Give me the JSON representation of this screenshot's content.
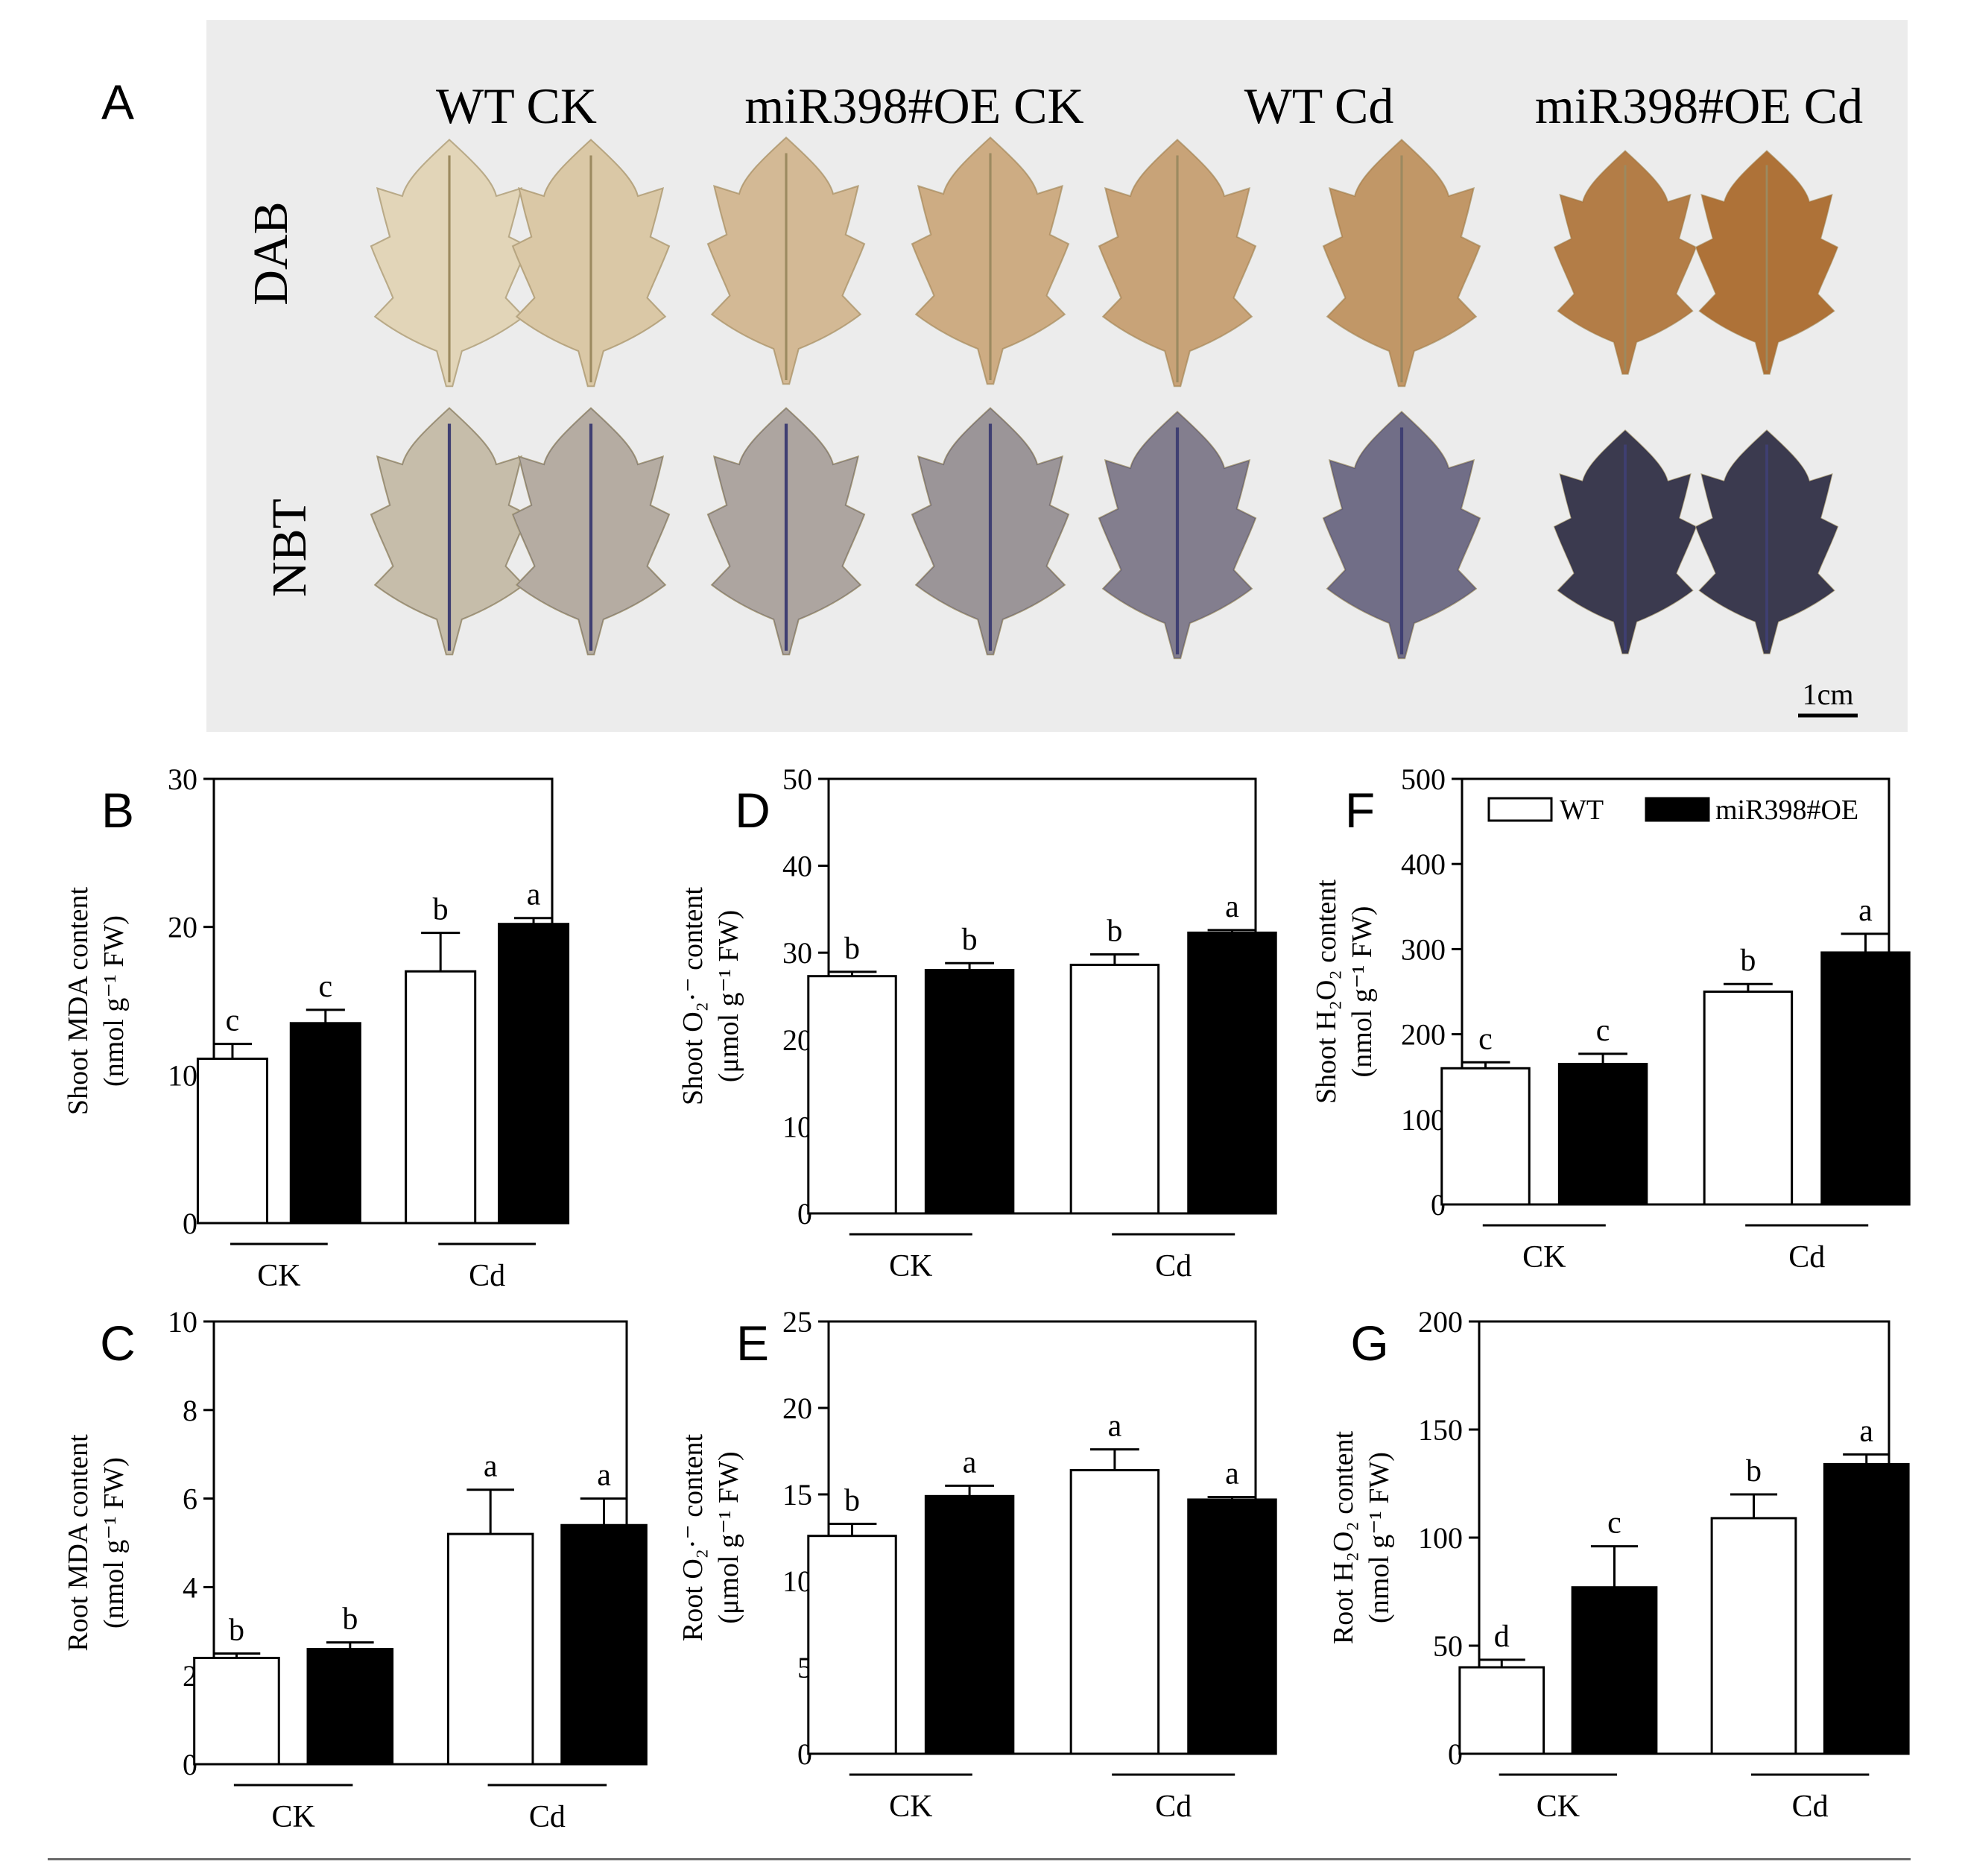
{
  "panel_a": {
    "label": "A",
    "columns": [
      "WT CK",
      "miR398#OE CK",
      "WT Cd",
      "miR398#OE Cd"
    ],
    "rows": [
      "DAB",
      "NBT"
    ],
    "scale_bar": "1cm",
    "photo_background": "#ececec",
    "stain_colors": {
      "dab_leaf": "#e2d5b8",
      "dab_brown": "#a8672a",
      "nbt_leaf": "#e8dcb8",
      "nbt_blue": "#3f3f72",
      "nbt_dark": "#2b2b45"
    }
  },
  "legend": {
    "wt_label": "WT",
    "oe_label": "miR398#OE"
  },
  "colors": {
    "wt_fill": "#ffffff",
    "oe_fill": "#000000",
    "axis": "#000000"
  },
  "chart_data": [
    {
      "id": "B",
      "type": "bar",
      "panel_label": "B",
      "ylabel_lines": [
        "Shoot MDA content",
        "(nmol g⁻¹ FW)"
      ],
      "ylim": [
        0,
        30
      ],
      "yticks": [
        0,
        10,
        20,
        30
      ],
      "groups": [
        "CK",
        "Cd"
      ],
      "series": [
        {
          "name": "WT",
          "values": [
            11.1,
            17.0
          ],
          "errors": [
            1.0,
            2.6
          ],
          "letters": [
            "c",
            "b"
          ]
        },
        {
          "name": "miR398#OE",
          "values": [
            13.5,
            20.2
          ],
          "errors": [
            0.9,
            0.4
          ],
          "letters": [
            "c",
            "a"
          ]
        }
      ]
    },
    {
      "id": "C",
      "type": "bar",
      "panel_label": "C",
      "ylabel_lines": [
        "Root MDA content",
        "(nmol g⁻¹ FW)"
      ],
      "ylim": [
        0,
        10
      ],
      "yticks": [
        0,
        2,
        4,
        6,
        8,
        10
      ],
      "groups": [
        "CK",
        "Cd"
      ],
      "series": [
        {
          "name": "WT",
          "values": [
            2.4,
            5.2
          ],
          "errors": [
            0.1,
            1.0
          ],
          "letters": [
            "b",
            "a"
          ]
        },
        {
          "name": "miR398#OE",
          "values": [
            2.6,
            5.4
          ],
          "errors": [
            0.15,
            0.6
          ],
          "letters": [
            "b",
            "a"
          ]
        }
      ]
    },
    {
      "id": "D",
      "type": "bar",
      "panel_label": "D",
      "ylabel_lines": [
        "Shoot O₂·⁻ content",
        "(μmol g⁻¹ FW)"
      ],
      "ylim": [
        0,
        50
      ],
      "yticks": [
        0,
        10,
        20,
        30,
        40,
        50
      ],
      "groups": [
        "CK",
        "Cd"
      ],
      "series": [
        {
          "name": "WT",
          "values": [
            27.3,
            28.6
          ],
          "errors": [
            0.5,
            1.2
          ],
          "letters": [
            "b",
            "b"
          ]
        },
        {
          "name": "miR398#OE",
          "values": [
            28.0,
            32.3
          ],
          "errors": [
            0.8,
            0.3
          ],
          "letters": [
            "b",
            "a"
          ]
        }
      ]
    },
    {
      "id": "E",
      "type": "bar",
      "panel_label": "E",
      "ylabel_lines": [
        "Root O₂·⁻ content",
        "(μmol g⁻¹ FW)"
      ],
      "ylim": [
        0,
        25
      ],
      "yticks": [
        0,
        5,
        10,
        15,
        20,
        25
      ],
      "groups": [
        "CK",
        "Cd"
      ],
      "series": [
        {
          "name": "WT",
          "values": [
            12.6,
            16.4
          ],
          "errors": [
            0.7,
            1.2
          ],
          "letters": [
            "b",
            "a"
          ]
        },
        {
          "name": "miR398#OE",
          "values": [
            14.9,
            14.7
          ],
          "errors": [
            0.6,
            0.15
          ],
          "letters": [
            "a",
            "a"
          ]
        }
      ]
    },
    {
      "id": "F",
      "type": "bar",
      "panel_label": "F",
      "ylabel_lines": [
        "Shoot H₂O₂ content",
        "(nmol g⁻¹ FW)"
      ],
      "ylim": [
        0,
        500
      ],
      "yticks": [
        0,
        100,
        200,
        300,
        400,
        500
      ],
      "groups": [
        "CK",
        "Cd"
      ],
      "series": [
        {
          "name": "WT",
          "values": [
            160,
            250
          ],
          "errors": [
            7,
            9
          ],
          "letters": [
            "c",
            "b"
          ]
        },
        {
          "name": "miR398#OE",
          "values": [
            165,
            296
          ],
          "errors": [
            12,
            22
          ],
          "letters": [
            "c",
            "a"
          ]
        }
      ]
    },
    {
      "id": "G",
      "type": "bar",
      "panel_label": "G",
      "ylabel_lines": [
        "Root H₂O₂ content",
        "(nmol g⁻¹ FW)"
      ],
      "ylim": [
        0,
        200
      ],
      "yticks": [
        0,
        50,
        100,
        150,
        200
      ],
      "groups": [
        "CK",
        "Cd"
      ],
      "series": [
        {
          "name": "WT",
          "values": [
            40,
            109
          ],
          "errors": [
            3.5,
            11
          ],
          "letters": [
            "d",
            "b"
          ]
        },
        {
          "name": "miR398#OE",
          "values": [
            77,
            134
          ],
          "errors": [
            19,
            4.5
          ],
          "letters": [
            "c",
            "a"
          ]
        }
      ]
    }
  ]
}
